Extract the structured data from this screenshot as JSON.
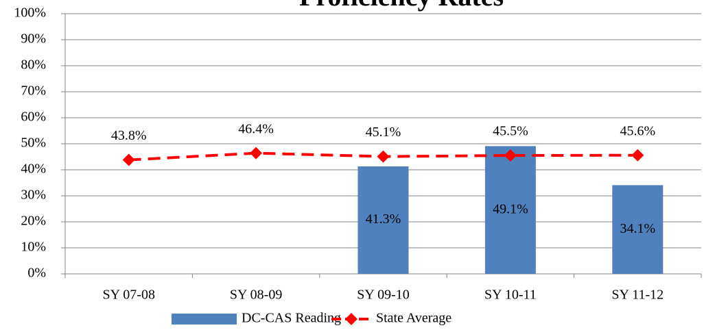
{
  "chart_data": {
    "type": "bar_line",
    "title": "Proficiency Rates",
    "categories": [
      "SY 07-08",
      "SY 08-09",
      "SY 09-10",
      "SY 10-11",
      "SY 11-12"
    ],
    "series": [
      {
        "name": "DC-CAS Reading",
        "type": "bar",
        "color": "#4f81bd",
        "values": [
          null,
          null,
          41.3,
          49.1,
          34.1
        ],
        "value_labels": [
          null,
          null,
          "41.3%",
          "49.1%",
          "34.1%"
        ]
      },
      {
        "name": "State Average",
        "type": "line",
        "color": "#ff0000",
        "dashed": true,
        "marker": "diamond",
        "values": [
          43.8,
          46.4,
          45.1,
          45.5,
          45.6
        ],
        "value_labels": [
          "43.8%",
          "46.4%",
          "45.1%",
          "45.5%",
          "45.6%"
        ]
      }
    ],
    "ylim": [
      0,
      100
    ],
    "yticks": [
      {
        "value": 0,
        "label": "0%"
      },
      {
        "value": 10,
        "label": "10%"
      },
      {
        "value": 20,
        "label": "20%"
      },
      {
        "value": 30,
        "label": "30%"
      },
      {
        "value": 40,
        "label": "40%"
      },
      {
        "value": 50,
        "label": "50%"
      },
      {
        "value": 60,
        "label": "60%"
      },
      {
        "value": 70,
        "label": "70%"
      },
      {
        "value": 80,
        "label": "80%"
      },
      {
        "value": 90,
        "label": "90%"
      },
      {
        "value": 100,
        "label": "100%"
      }
    ],
    "grid": true,
    "legend": "bottom"
  }
}
